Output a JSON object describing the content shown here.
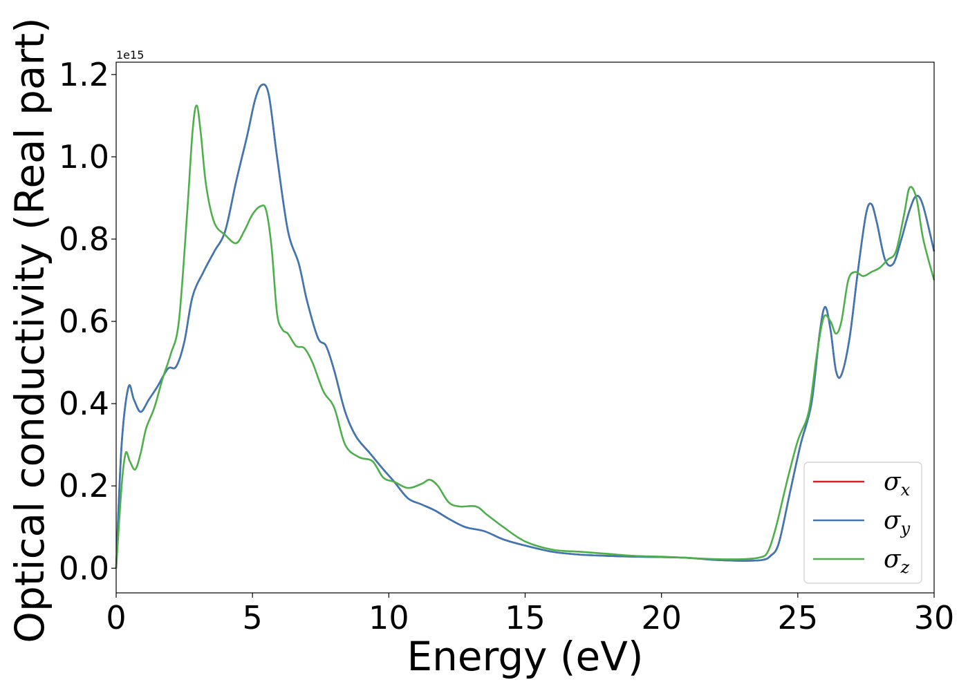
{
  "chart_data": {
    "type": "line",
    "xlabel": "Energy (eV)",
    "ylabel": "Optical conductivity (Real part)",
    "offset_text": "1e15",
    "xlim": [
      0,
      30
    ],
    "ylim": [
      -0.06,
      1.23
    ],
    "x_ticks": [
      0,
      5,
      10,
      15,
      20,
      25,
      30
    ],
    "x_tick_labels": [
      "0",
      "5",
      "10",
      "15",
      "20",
      "25",
      "30"
    ],
    "y_ticks": [
      0.0,
      0.2,
      0.4,
      0.6,
      0.8,
      1.0,
      1.2
    ],
    "y_tick_labels": [
      "0.0",
      "0.2",
      "0.4",
      "0.6",
      "0.8",
      "1.0",
      "1.2"
    ],
    "grid": false,
    "legend_position": "lower-right",
    "series": [
      {
        "name": "σ",
        "subscript": "x",
        "color": "#e41a1c",
        "x": [
          0,
          0.2,
          0.45,
          0.65,
          0.9,
          1.2,
          1.5,
          1.9,
          2.2,
          2.5,
          2.8,
          3.2,
          3.6,
          4.0,
          4.4,
          4.8,
          5.1,
          5.35,
          5.6,
          5.9,
          6.3,
          6.7,
          7.0,
          7.4,
          7.7,
          8.0,
          8.4,
          8.8,
          9.3,
          9.8,
          10.2,
          10.7,
          11.2,
          11.7,
          12.2,
          12.8,
          13.5,
          14.2,
          15,
          16,
          17,
          18,
          19,
          20,
          21,
          22,
          23,
          23.7,
          24.0,
          24.3,
          24.7,
          25.1,
          25.5,
          25.8,
          26.0,
          26.2,
          26.4,
          26.6,
          26.9,
          27.2,
          27.5,
          27.7,
          27.9,
          28.2,
          28.5,
          28.8,
          29.1,
          29.35,
          29.6,
          30
        ],
        "values": [
          0.0,
          0.3,
          0.44,
          0.41,
          0.38,
          0.41,
          0.44,
          0.485,
          0.49,
          0.55,
          0.66,
          0.72,
          0.77,
          0.82,
          0.94,
          1.05,
          1.14,
          1.175,
          1.15,
          1.0,
          0.82,
          0.74,
          0.65,
          0.56,
          0.54,
          0.48,
          0.38,
          0.32,
          0.28,
          0.24,
          0.21,
          0.17,
          0.155,
          0.14,
          0.12,
          0.1,
          0.09,
          0.07,
          0.055,
          0.04,
          0.033,
          0.03,
          0.028,
          0.027,
          0.025,
          0.02,
          0.018,
          0.02,
          0.03,
          0.06,
          0.18,
          0.3,
          0.4,
          0.57,
          0.635,
          0.58,
          0.48,
          0.47,
          0.56,
          0.72,
          0.86,
          0.885,
          0.84,
          0.75,
          0.74,
          0.8,
          0.87,
          0.905,
          0.88,
          0.77
        ]
      },
      {
        "name": "σ",
        "subscript": "y",
        "color": "#3a78b6",
        "x": [
          0,
          0.2,
          0.45,
          0.65,
          0.9,
          1.2,
          1.5,
          1.9,
          2.2,
          2.5,
          2.8,
          3.2,
          3.6,
          4.0,
          4.4,
          4.8,
          5.1,
          5.35,
          5.6,
          5.9,
          6.3,
          6.7,
          7.0,
          7.4,
          7.7,
          8.0,
          8.4,
          8.8,
          9.3,
          9.8,
          10.2,
          10.7,
          11.2,
          11.7,
          12.2,
          12.8,
          13.5,
          14.2,
          15,
          16,
          17,
          18,
          19,
          20,
          21,
          22,
          23,
          23.7,
          24.0,
          24.3,
          24.7,
          25.1,
          25.5,
          25.8,
          26.0,
          26.2,
          26.4,
          26.6,
          26.9,
          27.2,
          27.5,
          27.7,
          27.9,
          28.2,
          28.5,
          28.8,
          29.1,
          29.35,
          29.6,
          30
        ],
        "values": [
          0.0,
          0.3,
          0.44,
          0.41,
          0.38,
          0.41,
          0.44,
          0.485,
          0.49,
          0.55,
          0.66,
          0.72,
          0.77,
          0.82,
          0.94,
          1.05,
          1.14,
          1.175,
          1.15,
          1.0,
          0.82,
          0.74,
          0.65,
          0.56,
          0.54,
          0.48,
          0.38,
          0.32,
          0.28,
          0.24,
          0.21,
          0.17,
          0.155,
          0.14,
          0.12,
          0.1,
          0.09,
          0.07,
          0.055,
          0.04,
          0.033,
          0.03,
          0.028,
          0.027,
          0.025,
          0.02,
          0.018,
          0.02,
          0.03,
          0.06,
          0.18,
          0.3,
          0.4,
          0.57,
          0.635,
          0.58,
          0.48,
          0.47,
          0.56,
          0.72,
          0.86,
          0.885,
          0.84,
          0.75,
          0.74,
          0.8,
          0.87,
          0.905,
          0.88,
          0.77
        ]
      },
      {
        "name": "σ",
        "subscript": "z",
        "color": "#4daf4a",
        "x": [
          0,
          0.2,
          0.35,
          0.5,
          0.7,
          0.9,
          1.1,
          1.4,
          1.7,
          2.0,
          2.3,
          2.6,
          2.8,
          2.95,
          3.1,
          3.3,
          3.6,
          4.0,
          4.4,
          4.7,
          5.0,
          5.3,
          5.5,
          5.7,
          5.9,
          6.1,
          6.3,
          6.6,
          6.9,
          7.2,
          7.6,
          8.0,
          8.4,
          8.9,
          9.4,
          9.8,
          10.2,
          10.7,
          11.2,
          11.5,
          11.8,
          12.2,
          12.6,
          13.2,
          13.6,
          14.2,
          15,
          16,
          17,
          18,
          19,
          20,
          21,
          22,
          23,
          23.6,
          23.9,
          24.2,
          24.6,
          25.0,
          25.4,
          25.7,
          25.95,
          26.2,
          26.4,
          26.6,
          26.85,
          27.1,
          27.4,
          27.7,
          28.0,
          28.3,
          28.6,
          28.9,
          29.1,
          29.35,
          29.6,
          30
        ],
        "values": [
          0.0,
          0.2,
          0.28,
          0.26,
          0.24,
          0.28,
          0.34,
          0.39,
          0.46,
          0.52,
          0.6,
          0.86,
          1.06,
          1.125,
          1.06,
          0.93,
          0.84,
          0.81,
          0.79,
          0.82,
          0.86,
          0.88,
          0.87,
          0.78,
          0.62,
          0.58,
          0.57,
          0.54,
          0.535,
          0.5,
          0.43,
          0.39,
          0.3,
          0.27,
          0.26,
          0.22,
          0.21,
          0.195,
          0.205,
          0.215,
          0.2,
          0.16,
          0.15,
          0.15,
          0.13,
          0.1,
          0.065,
          0.045,
          0.04,
          0.035,
          0.03,
          0.028,
          0.025,
          0.022,
          0.022,
          0.026,
          0.04,
          0.1,
          0.21,
          0.31,
          0.38,
          0.52,
          0.61,
          0.6,
          0.57,
          0.6,
          0.7,
          0.72,
          0.71,
          0.72,
          0.73,
          0.75,
          0.77,
          0.86,
          0.925,
          0.9,
          0.8,
          0.7
        ]
      }
    ]
  }
}
